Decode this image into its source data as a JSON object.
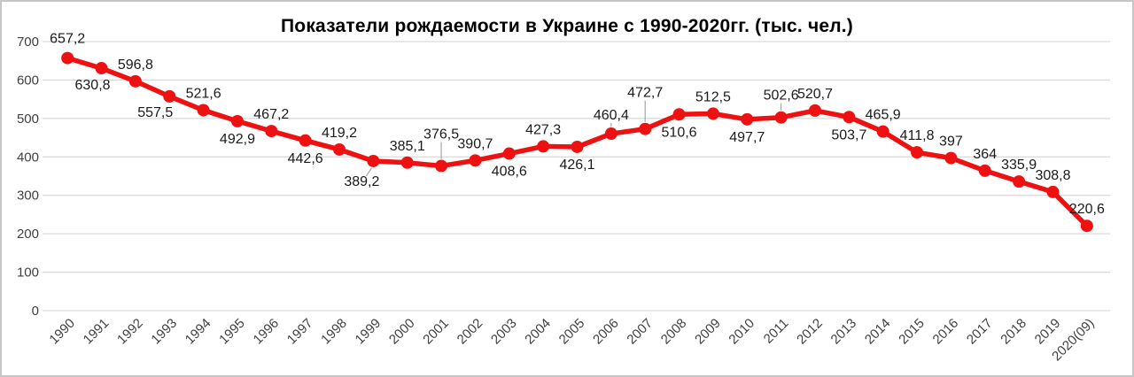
{
  "chart_data": {
    "type": "line",
    "title": "Показатели рождаемости в Украине с 1990-2020гг. (тыс. чел.)",
    "categories": [
      "1990",
      "1991",
      "1992",
      "1993",
      "1994",
      "1995",
      "1996",
      "1997",
      "1998",
      "1999",
      "2000",
      "2001",
      "2002",
      "2003",
      "2004",
      "2005",
      "2006",
      "2007",
      "2008",
      "2009",
      "2010",
      "2011",
      "2012",
      "2013",
      "2014",
      "2015",
      "2016",
      "2017",
      "2018",
      "2019",
      "2020(09)"
    ],
    "values": [
      657.2,
      630.8,
      596.8,
      557.5,
      521.6,
      492.9,
      467.2,
      442.6,
      419.2,
      389.2,
      385.1,
      376.5,
      390.7,
      408.6,
      427.3,
      426.1,
      460.4,
      472.7,
      510.6,
      512.5,
      497.7,
      502.6,
      520.7,
      503.7,
      465.9,
      411.8,
      397,
      364,
      335.9,
      308.8,
      220.6
    ],
    "value_labels": [
      "657,2",
      "630,8",
      "596,8",
      "557,5",
      "521,6",
      "492,9",
      "467,2",
      "442,6",
      "419,2",
      "389,2",
      "385,1",
      "376,5",
      "390,7",
      "408,6",
      "427,3",
      "426,1",
      "460,4",
      "472,7",
      "510,6",
      "512,5",
      "497,7",
      "502,6",
      "520,7",
      "503,7",
      "465,9",
      "411,8",
      "397",
      "364",
      "335,9",
      "308,8",
      "220,6"
    ],
    "label_positions": [
      "above",
      "below",
      "above",
      "below",
      "above",
      "below",
      "above",
      "below",
      "above",
      "below",
      "above",
      "above",
      "above",
      "below",
      "above",
      "below",
      "above",
      "above",
      "below",
      "above",
      "below",
      "above",
      "above",
      "below",
      "above",
      "above",
      "above",
      "above",
      "above",
      "above",
      "above"
    ],
    "label_offsets": {
      "0": [
        0,
        -17
      ],
      "1": [
        -10,
        24
      ],
      "3": [
        -16,
        23
      ],
      "9": [
        -13,
        28
      ],
      "11": [
        0,
        -31
      ],
      "16": [
        0,
        -16
      ],
      "17": [
        0,
        -36
      ],
      "21": [
        0,
        -20
      ]
    },
    "leader_indices": [
      9,
      11,
      16,
      17,
      21
    ],
    "xlabel": "",
    "ylabel": "",
    "ylim": [
      0,
      700
    ],
    "yticks": [
      0,
      100,
      200,
      300,
      400,
      500,
      600,
      700
    ],
    "grid": true,
    "legend": "none",
    "line_color": "#ee1111",
    "marker_color": "#ee1111",
    "grid_color": "#d9d9d9",
    "leader_color": "#a6a6a6",
    "axis_text_color": "#404040",
    "label_text_color": "#1a1a1a"
  }
}
